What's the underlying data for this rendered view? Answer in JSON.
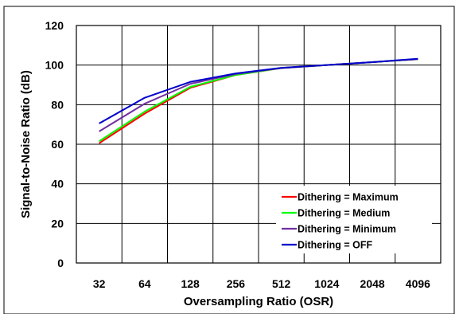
{
  "chart_data": {
    "type": "line",
    "title": "",
    "xlabel": "Oversampling Ratio (OSR)",
    "ylabel": "Signal-to-Noise Ratio (dB)",
    "categories": [
      "32",
      "64",
      "128",
      "256",
      "512",
      "1024",
      "2048",
      "4096"
    ],
    "ylim": [
      0,
      120
    ],
    "yticks": [
      0,
      20,
      40,
      60,
      80,
      100,
      120
    ],
    "grid": true,
    "legend_position": "bottom-right",
    "series": [
      {
        "name": "Dithering = Maximum",
        "color": "#ff0000",
        "values": [
          60.5,
          75.5,
          88.5,
          95.0,
          98.5,
          100.0,
          101.5,
          103.0
        ]
      },
      {
        "name": "Dithering = Medium",
        "color": "#00ff00",
        "values": [
          61.5,
          76.5,
          89.0,
          95.0,
          98.5,
          100.0,
          101.5,
          103.0
        ]
      },
      {
        "name": "Dithering = Minimum",
        "color": "#7030a0",
        "values": [
          66.5,
          80.5,
          90.5,
          95.5,
          98.5,
          100.0,
          101.5,
          103.0
        ]
      },
      {
        "name": "Dithering = OFF",
        "color": "#0000cc",
        "values": [
          70.5,
          83.5,
          91.5,
          95.8,
          98.6,
          100.0,
          101.5,
          103.2
        ]
      }
    ]
  }
}
